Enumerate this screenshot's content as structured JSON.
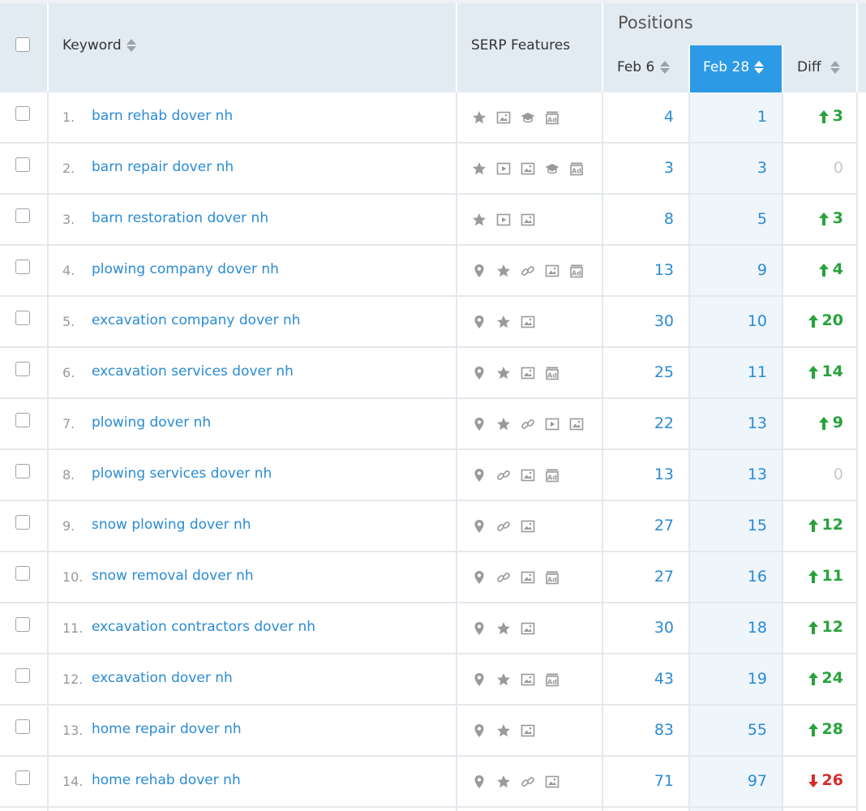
{
  "header": {
    "keyword_label": "Keyword",
    "serp_label": "SERP Features",
    "positions_label": "Positions",
    "col1_label": "Feb 6",
    "col2_label": "Feb 28",
    "diff_label": "Diff"
  },
  "colors": {
    "link": "#2a8bd4",
    "up": "#27a33c",
    "down": "#d62b2b",
    "active_sort": "#2d9ae6",
    "header_bg": "#e3ebf2"
  },
  "rows": [
    {
      "num": "1.",
      "keyword": "barn rehab dover nh",
      "features": [
        "star-icon",
        "image-icon",
        "graduation-cap-icon",
        "ad-icon"
      ],
      "feb6": "4",
      "feb28": "1",
      "diff": "3",
      "dir": "up"
    },
    {
      "num": "2.",
      "keyword": "barn repair dover nh",
      "features": [
        "star-icon",
        "video-icon",
        "image-icon",
        "graduation-cap-icon",
        "ad-icon"
      ],
      "feb6": "3",
      "feb28": "3",
      "diff": "0",
      "dir": "zero"
    },
    {
      "num": "3.",
      "keyword": "barn restoration dover nh",
      "features": [
        "star-icon",
        "video-icon",
        "image-icon"
      ],
      "feb6": "8",
      "feb28": "5",
      "diff": "3",
      "dir": "up"
    },
    {
      "num": "4.",
      "keyword": "plowing company dover nh",
      "features": [
        "pin-icon",
        "star-icon",
        "link-icon",
        "image-icon",
        "ad-icon"
      ],
      "feb6": "13",
      "feb28": "9",
      "diff": "4",
      "dir": "up"
    },
    {
      "num": "5.",
      "keyword": "excavation company dover nh",
      "features": [
        "pin-icon",
        "star-icon",
        "image-icon"
      ],
      "feb6": "30",
      "feb28": "10",
      "diff": "20",
      "dir": "up"
    },
    {
      "num": "6.",
      "keyword": "excavation services dover nh",
      "features": [
        "pin-icon",
        "star-icon",
        "image-icon",
        "ad-icon"
      ],
      "feb6": "25",
      "feb28": "11",
      "diff": "14",
      "dir": "up"
    },
    {
      "num": "7.",
      "keyword": "plowing dover nh",
      "features": [
        "pin-icon",
        "star-icon",
        "link-icon",
        "video-icon",
        "image-icon"
      ],
      "feb6": "22",
      "feb28": "13",
      "diff": "9",
      "dir": "up"
    },
    {
      "num": "8.",
      "keyword": "plowing services dover nh",
      "features": [
        "pin-icon",
        "link-icon",
        "image-icon",
        "ad-icon"
      ],
      "feb6": "13",
      "feb28": "13",
      "diff": "0",
      "dir": "zero"
    },
    {
      "num": "9.",
      "keyword": "snow plowing dover nh",
      "features": [
        "pin-icon",
        "link-icon",
        "image-icon"
      ],
      "feb6": "27",
      "feb28": "15",
      "diff": "12",
      "dir": "up"
    },
    {
      "num": "10.",
      "keyword": "snow removal dover nh",
      "features": [
        "pin-icon",
        "link-icon",
        "image-icon",
        "ad-icon"
      ],
      "feb6": "27",
      "feb28": "16",
      "diff": "11",
      "dir": "up"
    },
    {
      "num": "11.",
      "keyword": "excavation contractors dover nh",
      "features": [
        "pin-icon",
        "star-icon",
        "image-icon"
      ],
      "feb6": "30",
      "feb28": "18",
      "diff": "12",
      "dir": "up"
    },
    {
      "num": "12.",
      "keyword": "excavation dover nh",
      "features": [
        "pin-icon",
        "star-icon",
        "image-icon",
        "ad-icon"
      ],
      "feb6": "43",
      "feb28": "19",
      "diff": "24",
      "dir": "up"
    },
    {
      "num": "13.",
      "keyword": "home repair dover nh",
      "features": [
        "pin-icon",
        "star-icon",
        "image-icon"
      ],
      "feb6": "83",
      "feb28": "55",
      "diff": "28",
      "dir": "up"
    },
    {
      "num": "14.",
      "keyword": "home rehab dover nh",
      "features": [
        "pin-icon",
        "star-icon",
        "link-icon",
        "image-icon"
      ],
      "feb6": "71",
      "feb28": "97",
      "diff": "26",
      "dir": "down"
    }
  ]
}
